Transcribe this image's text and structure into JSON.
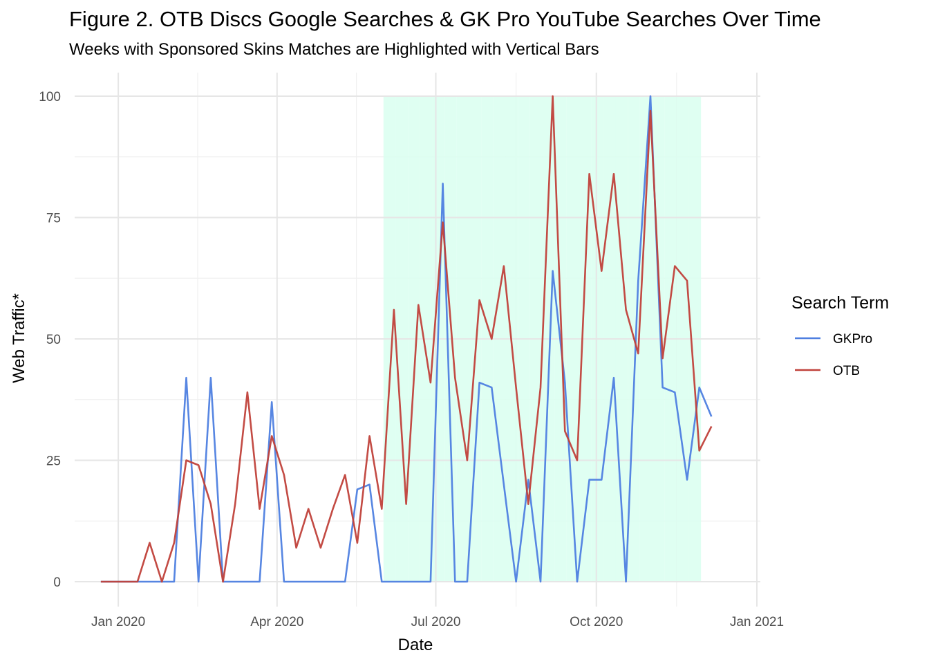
{
  "chart_data": {
    "type": "line",
    "title": "Figure 2. OTB Discs Google Searches & GK Pro YouTube Searches Over Time",
    "subtitle": "Weeks with Sponsored Skins Matches are Highlighted with Vertical Bars",
    "xlabel": "Date",
    "ylabel": "Web Traffic*",
    "xlim": [
      "2019-12-07",
      "2021-01-03"
    ],
    "ylim": [
      0,
      100
    ],
    "x_ticks": [
      {
        "date": "2020-01-01",
        "label": "Jan 2020"
      },
      {
        "date": "2020-04-01",
        "label": "Apr 2020"
      },
      {
        "date": "2020-07-01",
        "label": "Jul 2020"
      },
      {
        "date": "2020-10-01",
        "label": "Oct 2020"
      },
      {
        "date": "2021-01-01",
        "label": "Jan 2021"
      }
    ],
    "y_ticks": [
      0,
      25,
      50,
      75,
      100
    ],
    "legend": {
      "title": "Search Term",
      "position": "right"
    },
    "x": [
      "2019-12-22",
      "2019-12-29",
      "2020-01-05",
      "2020-01-12",
      "2020-01-19",
      "2020-01-26",
      "2020-02-02",
      "2020-02-09",
      "2020-02-16",
      "2020-02-23",
      "2020-03-01",
      "2020-03-08",
      "2020-03-15",
      "2020-03-22",
      "2020-03-29",
      "2020-04-05",
      "2020-04-12",
      "2020-04-19",
      "2020-04-26",
      "2020-05-03",
      "2020-05-10",
      "2020-05-17",
      "2020-05-24",
      "2020-05-31",
      "2020-06-07",
      "2020-06-14",
      "2020-06-21",
      "2020-06-28",
      "2020-07-05",
      "2020-07-12",
      "2020-07-19",
      "2020-07-26",
      "2020-08-02",
      "2020-08-09",
      "2020-08-16",
      "2020-08-23",
      "2020-08-30",
      "2020-09-06",
      "2020-09-13",
      "2020-09-20",
      "2020-09-27",
      "2020-10-04",
      "2020-10-11",
      "2020-10-18",
      "2020-10-25",
      "2020-11-01",
      "2020-11-08",
      "2020-11-15",
      "2020-11-22",
      "2020-11-29",
      "2020-12-06",
      "2020-12-13"
    ],
    "series": [
      {
        "name": "GKPro",
        "color": "#4e7fe0",
        "values": [
          0,
          0,
          0,
          0,
          0,
          0,
          0,
          42,
          0,
          42,
          0,
          0,
          0,
          0,
          37,
          0,
          0,
          0,
          0,
          0,
          0,
          19,
          20,
          0,
          0,
          0,
          0,
          0,
          82,
          0,
          0,
          41,
          40,
          20,
          0,
          21,
          0,
          64,
          41,
          0,
          21,
          21,
          42,
          0,
          62,
          100,
          40,
          39,
          21,
          40,
          34,
          null
        ]
      },
      {
        "name": "OTB",
        "color": "#c0413a",
        "values": [
          0,
          0,
          0,
          0,
          8,
          0,
          8,
          25,
          24,
          16,
          0,
          16,
          39,
          15,
          30,
          22,
          7,
          15,
          7,
          15,
          22,
          8,
          30,
          15,
          56,
          16,
          57,
          41,
          74,
          42,
          25,
          58,
          50,
          65,
          40,
          16,
          40,
          100,
          31,
          25,
          84,
          64,
          84,
          56,
          47,
          97,
          46,
          65,
          62,
          27,
          32,
          null
        ]
      }
    ],
    "highlight_weeks": [
      "2020-06-01",
      "2020-06-08",
      "2020-06-15",
      "2020-06-22",
      "2020-06-29",
      "2020-07-06",
      "2020-07-13",
      "2020-07-20",
      "2020-07-27",
      "2020-08-03",
      "2020-08-10",
      "2020-08-17",
      "2020-08-24",
      "2020-08-31",
      "2020-09-07",
      "2020-09-14",
      "2020-09-21",
      "2020-09-28",
      "2020-10-05",
      "2020-10-12",
      "2020-10-19",
      "2020-10-26",
      "2020-11-02",
      "2020-11-09",
      "2020-11-16",
      "2020-11-23"
    ],
    "highlight_color": "#d9fff0"
  }
}
